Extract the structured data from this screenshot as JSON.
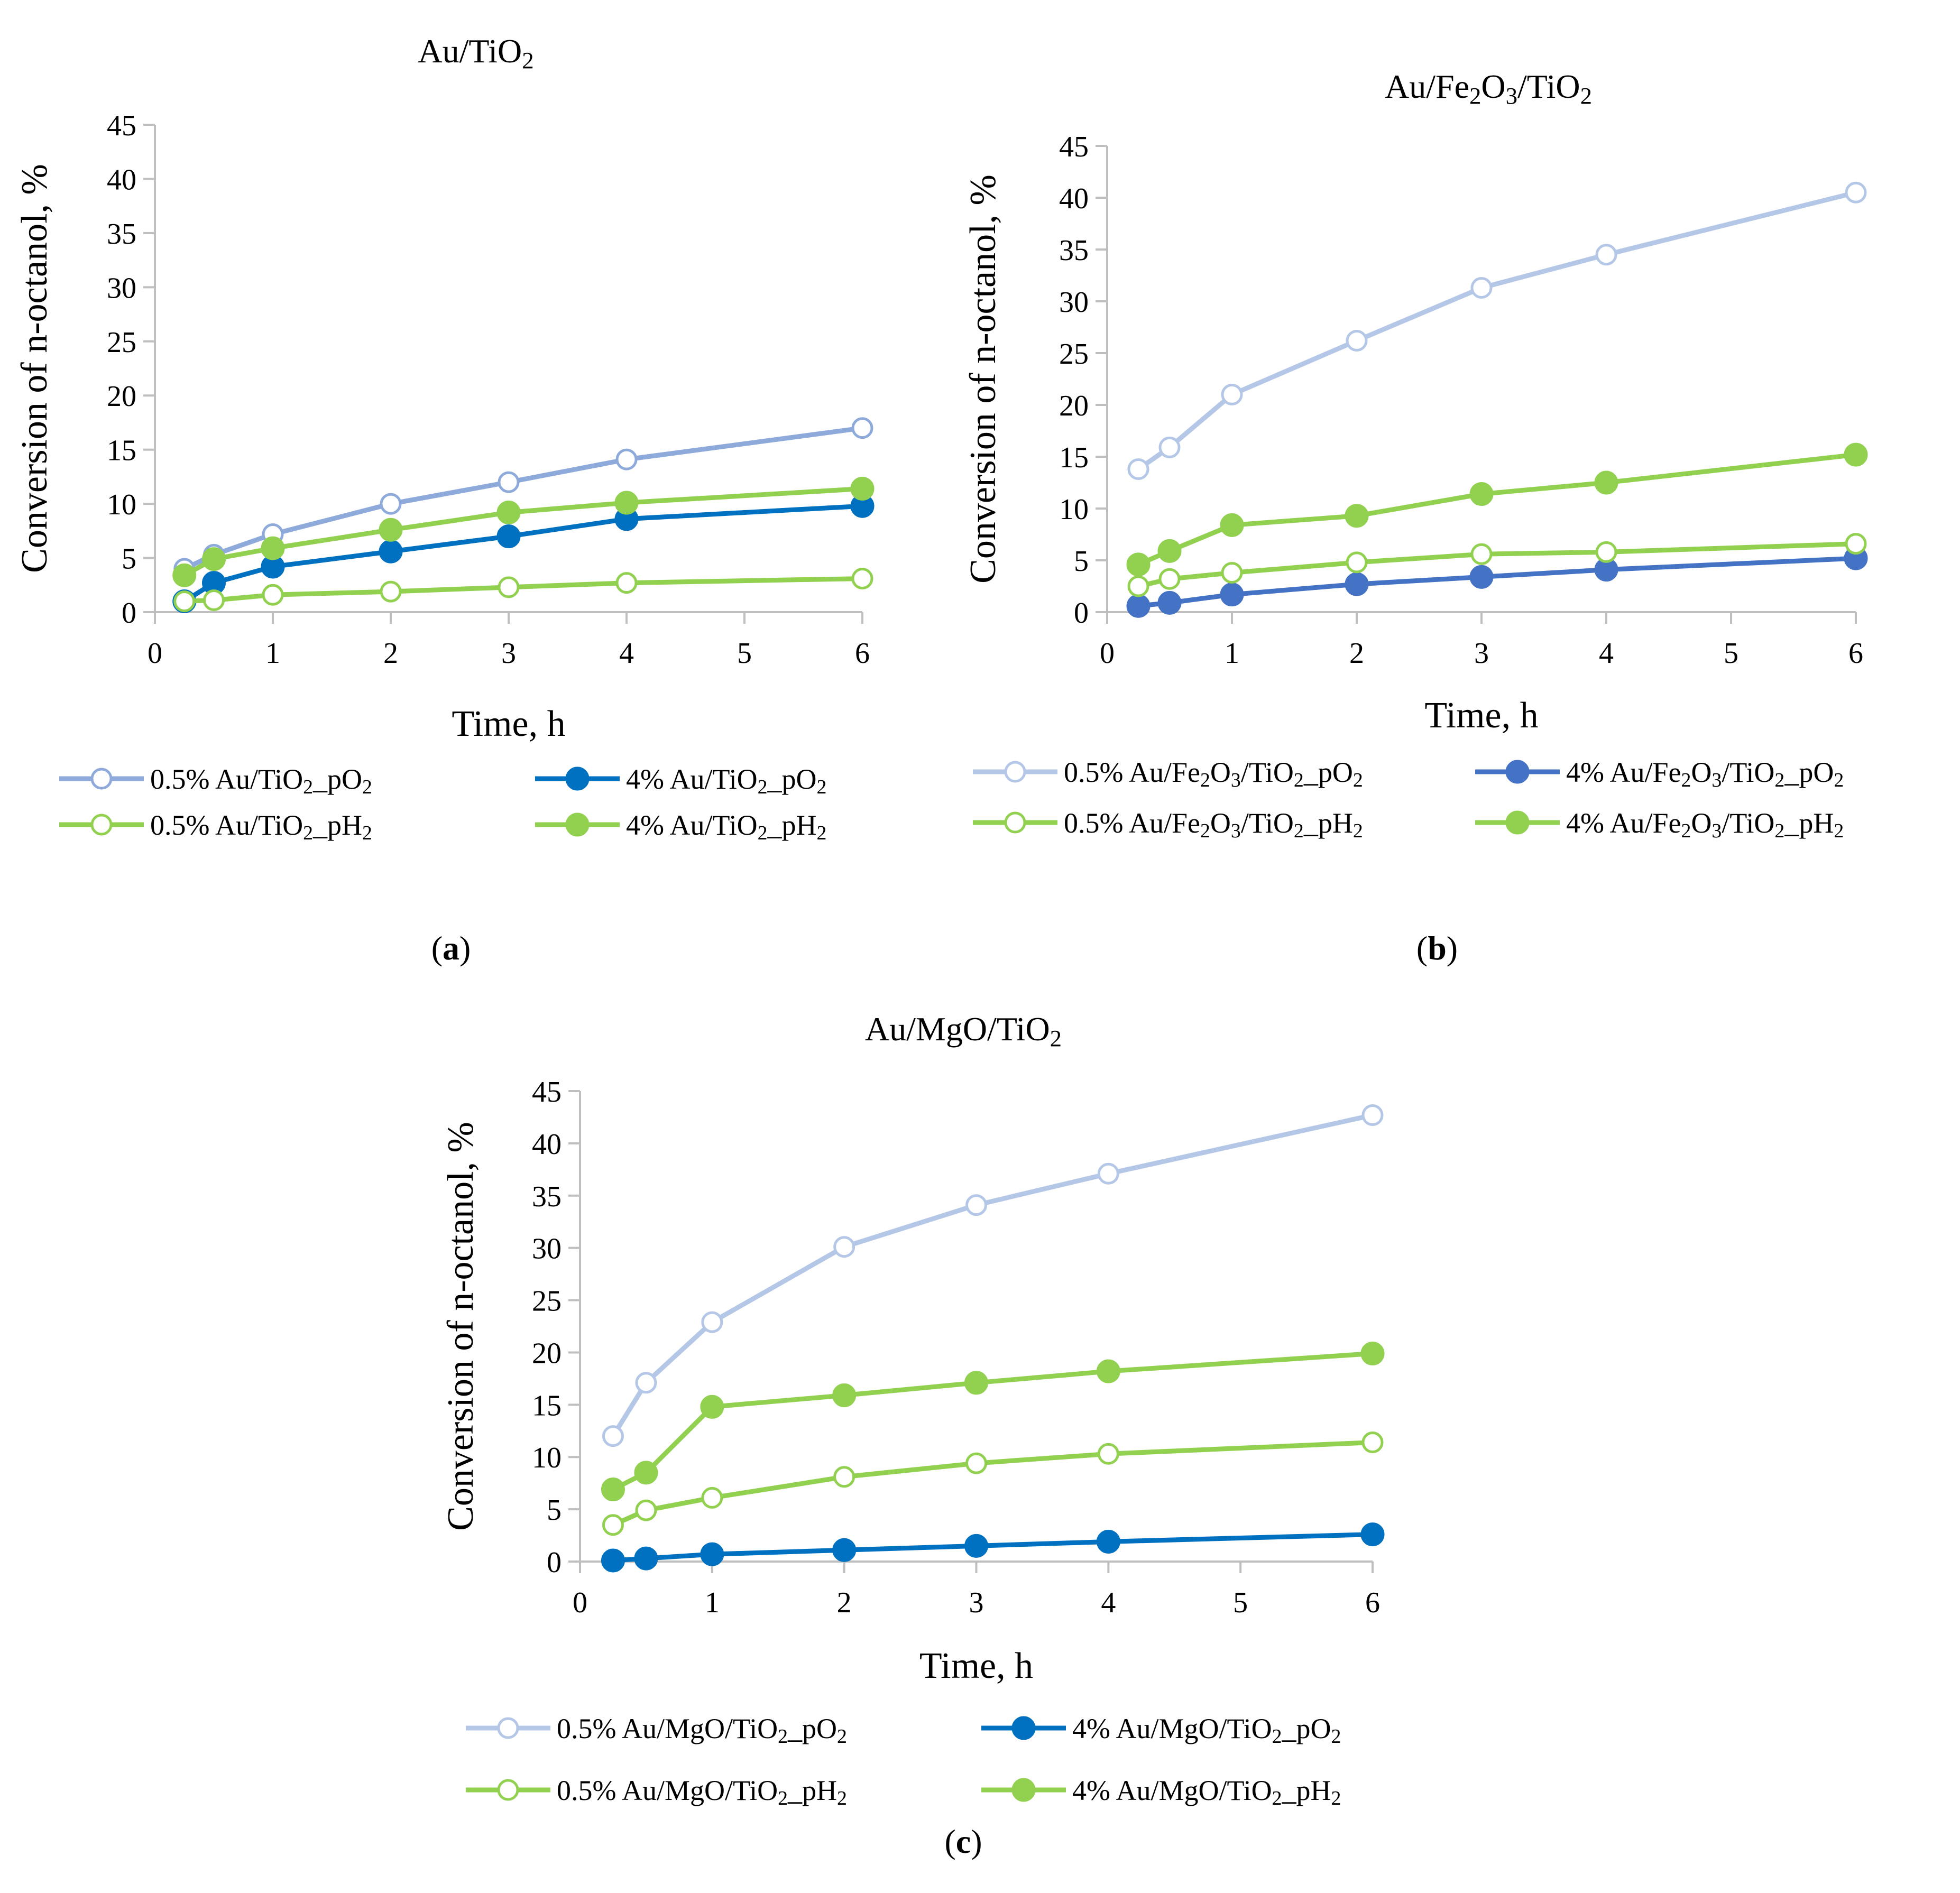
{
  "figure": {
    "captions": [
      "(a)",
      "(b)",
      "(c)"
    ]
  },
  "chart_data": [
    {
      "id": "a",
      "caption_letter": "a",
      "type": "line",
      "title": "Au/TiO2",
      "xlabel": "Time, h",
      "ylabel": "Conversion of n-octanol, %",
      "xlim": [
        0,
        6
      ],
      "ylim": [
        0,
        45
      ],
      "xticks": [
        0,
        1,
        2,
        3,
        4,
        5,
        6
      ],
      "yticks": [
        0,
        5,
        10,
        15,
        20,
        25,
        30,
        35,
        40,
        45
      ],
      "grid": false,
      "legend_position": "bottom",
      "x": [
        0.25,
        0.5,
        1,
        2,
        3,
        4,
        6
      ],
      "series": [
        {
          "name": "0.5% Au/TiO2_pO2",
          "color": "#8eaadb",
          "marker": "open",
          "values": [
            4.0,
            5.3,
            7.2,
            10.0,
            12.0,
            14.1,
            17.0
          ]
        },
        {
          "name": "4% Au/TiO2_pO2",
          "color": "#0070c0",
          "marker": "filled",
          "values": [
            1.0,
            2.7,
            4.2,
            5.6,
            7.0,
            8.6,
            9.8
          ]
        },
        {
          "name": "0.5% Au/TiO2_pH2",
          "color": "#92d050",
          "marker": "open",
          "values": [
            1.0,
            1.1,
            1.6,
            1.9,
            2.3,
            2.7,
            3.1
          ]
        },
        {
          "name": "4% Au/TiO2_pH2",
          "color": "#92d050",
          "marker": "filled",
          "values": [
            3.4,
            4.9,
            5.9,
            7.6,
            9.2,
            10.1,
            11.4
          ]
        }
      ]
    },
    {
      "id": "b",
      "caption_letter": "b",
      "type": "line",
      "title": "Au/Fe2O3/TiO2",
      "xlabel": "Time, h",
      "ylabel": "Conversion of n-octanol, %",
      "xlim": [
        0,
        6
      ],
      "ylim": [
        0,
        45
      ],
      "xticks": [
        0,
        1,
        2,
        3,
        4,
        5,
        6
      ],
      "yticks": [
        0,
        5,
        10,
        15,
        20,
        25,
        30,
        35,
        40,
        45
      ],
      "grid": false,
      "legend_position": "bottom",
      "x": [
        0.25,
        0.5,
        1,
        2,
        3,
        4,
        6
      ],
      "series": [
        {
          "name": "0.5% Au/Fe2O3/TiO2_pO2",
          "color": "#b4c7e7",
          "marker": "open",
          "values": [
            13.8,
            15.9,
            21.0,
            26.2,
            31.3,
            34.5,
            40.5
          ]
        },
        {
          "name": "4% Au/Fe2O3/TiO2_pO2",
          "color": "#4472c4",
          "marker": "filled",
          "values": [
            0.6,
            0.9,
            1.7,
            2.7,
            3.4,
            4.1,
            5.2
          ]
        },
        {
          "name": "0.5% Au/Fe2O3/TiO2_pH2",
          "color": "#92d050",
          "marker": "open",
          "values": [
            2.5,
            3.2,
            3.8,
            4.8,
            5.6,
            5.8,
            6.6
          ]
        },
        {
          "name": "4% Au/Fe2O3/TiO2_pH2",
          "color": "#92d050",
          "marker": "filled",
          "values": [
            4.6,
            5.9,
            8.4,
            9.3,
            11.4,
            12.5,
            15.2
          ]
        }
      ]
    },
    {
      "id": "c",
      "caption_letter": "c",
      "type": "line",
      "title": "Au/MgO/TiO2",
      "xlabel": "Time, h",
      "ylabel": "Conversion of n-octanol, %",
      "xlim": [
        0,
        6
      ],
      "ylim": [
        0,
        45
      ],
      "xticks": [
        0,
        1,
        2,
        3,
        4,
        5,
        6
      ],
      "yticks": [
        0,
        5,
        10,
        15,
        20,
        25,
        30,
        35,
        40,
        45
      ],
      "grid": false,
      "legend_position": "bottom",
      "x": [
        0.25,
        0.5,
        1,
        2,
        3,
        4,
        6
      ],
      "series": [
        {
          "name": "0.5% Au/MgO/TiO2_pO2",
          "color": "#b4c7e7",
          "marker": "open",
          "values": [
            12.0,
            17.1,
            22.9,
            30.1,
            34.1,
            37.1,
            42.7
          ]
        },
        {
          "name": "4% Au/MgO/TiO2_pO2",
          "color": "#0070c0",
          "marker": "filled",
          "values": [
            0.1,
            0.3,
            0.7,
            1.1,
            1.5,
            1.9,
            2.6
          ]
        },
        {
          "name": "0.5% Au/MgO/TiO2_pH2",
          "color": "#92d050",
          "marker": "open",
          "values": [
            3.5,
            4.9,
            6.1,
            8.1,
            9.4,
            10.3,
            11.4
          ]
        },
        {
          "name": "4% Au/MgO/TiO2_pH2",
          "color": "#92d050",
          "marker": "filled",
          "values": [
            6.9,
            8.5,
            14.8,
            15.9,
            17.1,
            18.2,
            19.9
          ]
        }
      ]
    }
  ]
}
